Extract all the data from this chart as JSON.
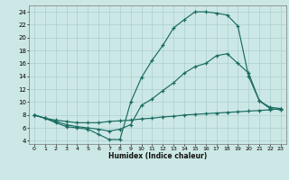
{
  "xlabel": "Humidex (Indice chaleur)",
  "bg_color": "#cce8e6",
  "line_color": "#1a6b60",
  "grid_color": "#aacfcd",
  "xlim": [
    -0.5,
    23.5
  ],
  "ylim": [
    3.5,
    25.0
  ],
  "xticks": [
    0,
    1,
    2,
    3,
    4,
    5,
    6,
    7,
    8,
    9,
    10,
    11,
    12,
    13,
    14,
    15,
    16,
    17,
    18,
    19,
    20,
    21,
    22,
    23
  ],
  "yticks": [
    4,
    6,
    8,
    10,
    12,
    14,
    16,
    18,
    20,
    22,
    24
  ],
  "curve_top_x": [
    0,
    1,
    2,
    3,
    4,
    5,
    6,
    7,
    8,
    9,
    10,
    11,
    12,
    13,
    14,
    15,
    16,
    17,
    18,
    19,
    20,
    21,
    22,
    23
  ],
  "curve_top_y": [
    8.0,
    7.5,
    6.8,
    6.2,
    6.0,
    5.8,
    5.0,
    4.2,
    4.2,
    10.0,
    13.8,
    16.5,
    18.8,
    21.5,
    22.8,
    24.0,
    24.0,
    23.8,
    23.5,
    21.8,
    14.0,
    10.2,
    9.2,
    9.0
  ],
  "curve_mid_x": [
    0,
    1,
    2,
    3,
    4,
    5,
    6,
    7,
    8,
    9,
    10,
    11,
    12,
    13,
    14,
    15,
    16,
    17,
    18,
    19,
    20,
    21,
    22,
    23
  ],
  "curve_mid_y": [
    8.0,
    7.5,
    7.0,
    6.5,
    6.2,
    6.0,
    5.8,
    5.5,
    5.8,
    6.5,
    9.5,
    10.5,
    11.8,
    13.0,
    14.5,
    15.5,
    16.0,
    17.2,
    17.5,
    16.0,
    14.5,
    10.2,
    9.0,
    8.8
  ],
  "curve_bot_x": [
    0,
    1,
    2,
    3,
    4,
    5,
    6,
    7,
    8,
    9,
    10,
    11,
    12,
    13,
    14,
    15,
    16,
    17,
    18,
    19,
    20,
    21,
    22,
    23
  ],
  "curve_bot_y": [
    8.0,
    7.5,
    7.2,
    7.0,
    6.8,
    6.8,
    6.8,
    7.0,
    7.1,
    7.2,
    7.4,
    7.5,
    7.7,
    7.8,
    8.0,
    8.1,
    8.2,
    8.3,
    8.4,
    8.5,
    8.6,
    8.7,
    8.8,
    9.0
  ]
}
